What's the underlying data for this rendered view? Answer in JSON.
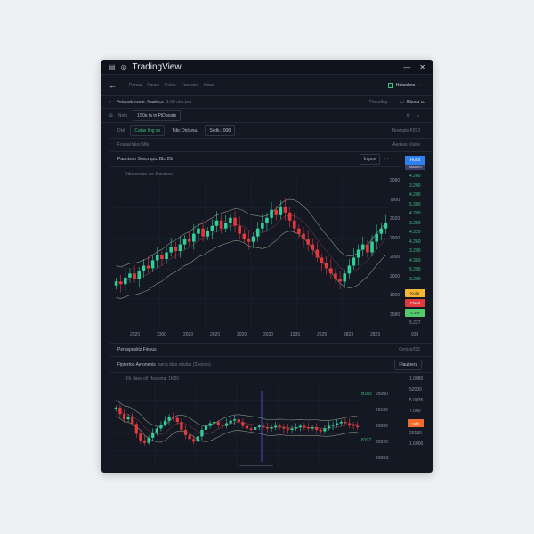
{
  "window": {
    "app_icon": "camera-icon",
    "title": "TradingView",
    "minimize": "—",
    "close": "✕"
  },
  "nav": {
    "back": "←",
    "items": [
      "Ponaa",
      "Faxns",
      "Fotok",
      "Foneanc",
      "Hacs"
    ],
    "badge": "Hatunbos"
  },
  "row1": {
    "text": "Fetauob rowie. Naulocs",
    "sub": "(1.00 ob cbo)",
    "dropdown": "Theudlop",
    "action": "Eboos co"
  },
  "row2": {
    "label": "Nelp",
    "field": "1S0e ts in PiDboate"
  },
  "row3": {
    "label": "Dkil",
    "chips": [
      "Catas ling es",
      "Tdic Dictuna.",
      "Svdk.: 008"
    ],
    "right": "Noenple F093"
  },
  "row4": {
    "label": "Fossal talocAfle",
    "right": "Aeckas Ktube"
  },
  "chart_header": {
    "title": "Paantsnn Soncrupu. Bb. 20r",
    "button": "Inipov",
    "right_top": "Hurbt",
    "right_sub": "assanrd"
  },
  "chart_legend": "Ddsooseae de: Bandres",
  "chart_data": [
    {
      "type": "candlestick",
      "closes": [
        30,
        28,
        33,
        36,
        32,
        38,
        42,
        40,
        46,
        50,
        47,
        52,
        56,
        53,
        58,
        62,
        60,
        66,
        70,
        64,
        68,
        72,
        76,
        70,
        74,
        78,
        72,
        66,
        62,
        60,
        64,
        70,
        74,
        78,
        84,
        80,
        86,
        82,
        76,
        70,
        66,
        62,
        58,
        54,
        48,
        44,
        40,
        36,
        32,
        30,
        36,
        42,
        48,
        54,
        58,
        52,
        60,
        66,
        70,
        74
      ],
      "price_labels": [
        "9080",
        "7900",
        "2020",
        "2900",
        "2000",
        "2000",
        "1000",
        "3580"
      ],
      "time_labels": [
        "2020",
        "2300",
        "2020",
        "2020",
        "2020",
        "2020",
        "1935",
        "2525",
        "2823",
        "2823"
      ]
    },
    {
      "type": "candlestick",
      "closes": [
        80,
        70,
        62,
        66,
        55,
        40,
        30,
        26,
        34,
        42,
        48,
        54,
        60,
        66,
        64,
        58,
        46,
        38,
        32,
        28,
        36,
        46,
        52,
        56,
        58,
        54,
        52,
        56,
        60,
        62,
        58,
        52,
        48,
        46,
        50,
        52,
        50,
        48,
        50,
        52,
        50,
        48,
        46,
        48,
        50,
        52,
        50,
        48,
        50,
        46,
        44,
        48,
        52,
        54,
        56,
        58,
        56,
        54,
        52,
        50
      ],
      "price_labels": [
        "25000",
        "29100",
        "20000",
        "20020",
        "2000S"
      ],
      "side_labels": [
        "1.0080",
        "52000",
        "5.0035",
        "7.000",
        "20130",
        "1.6000"
      ],
      "series_tags": [
        "B103",
        "8107"
      ]
    }
  ],
  "right_panel": {
    "values": [
      "4.280",
      "3.200",
      "4.200",
      "5.380",
      "4.290",
      "3.280",
      "4.320",
      "4.260",
      "3.290",
      "4.360",
      "5.290",
      "3.200"
    ],
    "buttons": [
      "Kolur",
      "Fissd",
      "C.Pe"
    ],
    "bottom": "5.227",
    "footer": "938",
    "colors": {
      "kolur": "#f7b733",
      "fissd": "#e23a3a",
      "cpe": "#52c96b",
      "accent": "#2f7ff0"
    }
  },
  "lower": {
    "title": "Peraspnsiitz Finous",
    "right": "Oxniss/OS",
    "sub": "Fipiertop Aetonenis",
    "sub_detail": "aeca dias ctodas (Socioto)",
    "button": "Flauiperz",
    "legend": "Fk daes oll Hoseera. 1K80",
    "orange_tag": "r.sFc"
  },
  "colors": {
    "up": "#2fcf9a",
    "down": "#e5383b",
    "bg": "#141823"
  }
}
